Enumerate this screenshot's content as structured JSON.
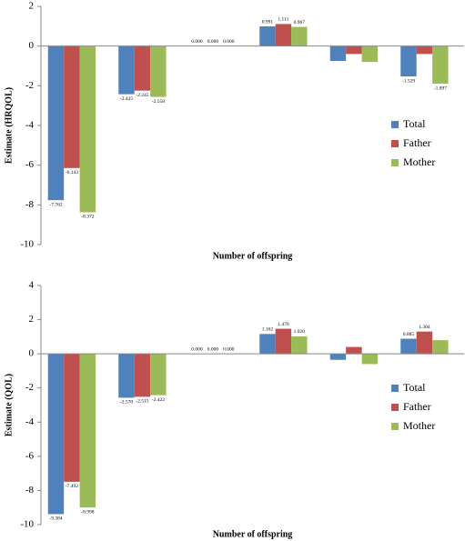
{
  "chart_data": [
    {
      "type": "bar",
      "y_label": "Estimate (HRQOL)",
      "x_label": "Number of offspring",
      "categories": [
        null,
        null,
        null,
        null,
        null,
        null
      ],
      "ylim": [
        -10,
        2
      ],
      "yticks": [
        -10,
        -8,
        -6,
        -4,
        -2,
        0,
        2
      ],
      "grid": false,
      "legend": "right",
      "series": [
        {
          "name": "Total",
          "color": "#4f81bd",
          "values": [
            -7.762,
            -2.425,
            0,
            0.991,
            -0.75,
            -1.529
          ],
          "value_labels": [
            "-7.762",
            "-2.425",
            "0.000",
            "0.991",
            null,
            "-1.529"
          ]
        },
        {
          "name": "Father",
          "color": "#c0504d",
          "values": [
            -6.143,
            -2.245,
            0,
            1.111,
            -0.4,
            -0.4
          ],
          "value_labels": [
            "-6.143",
            "-2.245",
            "0.000",
            "1.111",
            null,
            null
          ]
        },
        {
          "name": "Mother",
          "color": "#9bbb59",
          "values": [
            -8.372,
            -2.558,
            0,
            0.967,
            -0.8,
            -1.897
          ],
          "value_labels": [
            "-8.372",
            "-2.558",
            "0.000",
            "0.967",
            null,
            "-1.897"
          ]
        }
      ]
    },
    {
      "type": "bar",
      "y_label": "Estimate (QOL)",
      "x_label": "Number of offspring",
      "categories": [
        null,
        null,
        null,
        null,
        null,
        null
      ],
      "ylim": [
        -10,
        4
      ],
      "yticks": [
        -10,
        -8,
        -6,
        -4,
        -2,
        0,
        2,
        4
      ],
      "grid": false,
      "legend": "right",
      "series": [
        {
          "name": "Total",
          "color": "#4f81bd",
          "values": [
            -9.384,
            -2.57,
            0,
            1.162,
            -0.35,
            0.885
          ],
          "value_labels": [
            "-9.384",
            "-2.570",
            "0.000",
            "1.162",
            null,
            "0.885"
          ]
        },
        {
          "name": "Father",
          "color": "#c0504d",
          "values": [
            -7.492,
            -2.515,
            0,
            1.47,
            0.4,
            1.304
          ],
          "value_labels": [
            "-7.492",
            "-2.515",
            "0.000",
            "1.470",
            null,
            "1.304"
          ]
        },
        {
          "name": "Mother",
          "color": "#9bbb59",
          "values": [
            -8.998,
            -2.422,
            0,
            1.02,
            -0.6,
            0.8
          ],
          "value_labels": [
            "-8.998",
            "-2.422",
            "0.000",
            "1.020",
            null,
            null
          ]
        }
      ]
    }
  ]
}
